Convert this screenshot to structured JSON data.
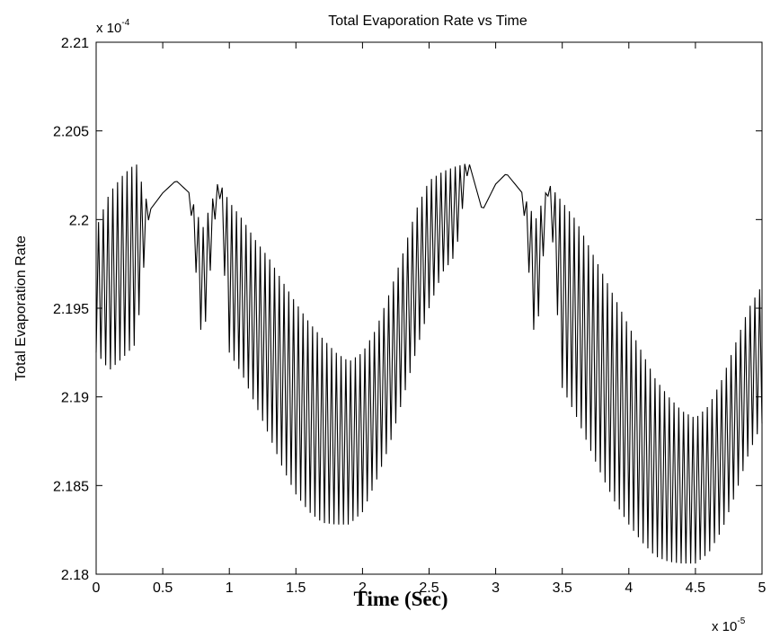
{
  "chart_data": {
    "type": "line",
    "title": "Total Evaporation Rate vs Time",
    "xlabel": "Time (Sec)",
    "ylabel": "Total Evaporation Rate",
    "x_multiplier": {
      "base": "x 10",
      "exp": "-5"
    },
    "y_multiplier": {
      "base": "x 10",
      "exp": "-4"
    },
    "xlim": [
      0,
      5
    ],
    "ylim": [
      2.18,
      2.21
    ],
    "x_ticks": [
      "0",
      "0.5",
      "1",
      "1.5",
      "2",
      "2.5",
      "3",
      "3.5",
      "4",
      "4.5",
      "5"
    ],
    "y_ticks": [
      "2.18",
      "2.185",
      "2.19",
      "2.195",
      "2.2",
      "2.205",
      "2.21"
    ],
    "grid": false,
    "series": [
      {
        "color": "#000000",
        "anchors": {
          "x": [
            0.0,
            0.1,
            0.2,
            0.3,
            0.4,
            0.5,
            0.6,
            0.7,
            0.8,
            0.92,
            1.0,
            1.1,
            1.2,
            1.3,
            1.4,
            1.5,
            1.6,
            1.7,
            1.8,
            1.9,
            2.0,
            2.1,
            2.2,
            2.3,
            2.4,
            2.5,
            2.6,
            2.7,
            2.8,
            2.9,
            3.0,
            3.08,
            3.2,
            3.3,
            3.4,
            3.5,
            3.6,
            3.7,
            3.8,
            3.9,
            4.0,
            4.1,
            4.2,
            4.3,
            4.4,
            4.5,
            4.6,
            4.7,
            4.8,
            4.9,
            5.0
          ],
          "upper": [
            2.1995,
            2.2015,
            2.2025,
            2.2032,
            2.2005,
            2.2015,
            2.2022,
            2.2015,
            2.1995,
            2.2022,
            2.201,
            2.2,
            2.1988,
            2.1978,
            2.1965,
            2.1953,
            2.1942,
            2.1933,
            2.1925,
            2.192,
            2.1925,
            2.1938,
            2.1958,
            2.198,
            2.2005,
            2.2022,
            2.2027,
            2.203,
            2.2032,
            2.2005,
            2.202,
            2.2026,
            2.2015,
            2.2,
            2.202,
            2.201,
            2.2,
            2.1985,
            2.197,
            2.1955,
            2.194,
            2.1925,
            2.191,
            2.19,
            2.1892,
            2.1888,
            2.1895,
            2.191,
            2.193,
            2.195,
            2.1963
          ],
          "lower": [
            2.1925,
            2.1915,
            2.1922,
            2.193,
            2.2005,
            2.2015,
            2.2022,
            2.2015,
            2.1925,
            2.2022,
            2.1925,
            2.1912,
            2.1895,
            2.1878,
            2.186,
            2.1845,
            2.1835,
            2.1829,
            2.1828,
            2.1828,
            2.1835,
            2.1852,
            2.1872,
            2.1898,
            2.1925,
            2.195,
            2.197,
            2.198,
            2.2032,
            2.2005,
            2.202,
            2.2026,
            2.2015,
            2.1925,
            2.202,
            2.1905,
            2.189,
            2.1872,
            2.1855,
            2.184,
            2.1828,
            2.1818,
            2.181,
            2.1807,
            2.1806,
            2.1806,
            2.1812,
            2.1825,
            2.1845,
            2.1868,
            2.1885
          ]
        },
        "oscillation_periods": 140
      }
    ]
  }
}
